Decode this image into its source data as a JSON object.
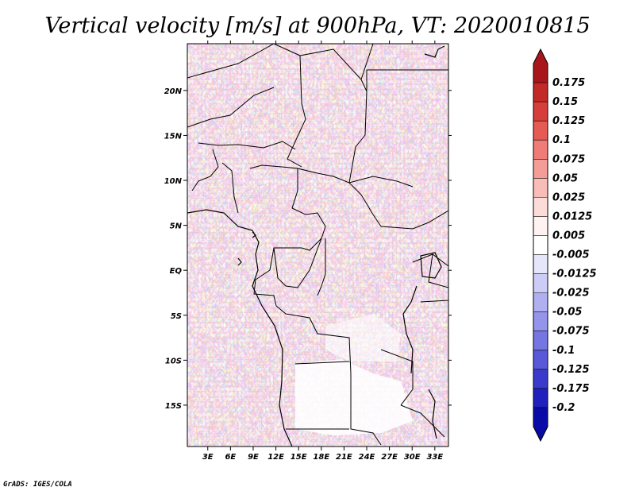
{
  "chart_data": {
    "type": "heatmap",
    "title": "Vertical velocity [m/s] at 900hPa, VT: 2020010815",
    "variable": "Vertical velocity",
    "units": "m/s",
    "level": "900hPa",
    "valid_time": "2020010815",
    "x_ticks": [
      "3E",
      "6E",
      "9E",
      "12E",
      "15E",
      "18E",
      "21E",
      "24E",
      "27E",
      "30E",
      "33E"
    ],
    "x_tick_values": [
      3,
      6,
      9,
      12,
      15,
      18,
      21,
      24,
      27,
      30,
      33
    ],
    "y_ticks": [
      "20N",
      "15N",
      "10N",
      "5N",
      "EQ",
      "5S",
      "10S",
      "15S"
    ],
    "y_tick_values": [
      20,
      15,
      10,
      5,
      0,
      -5,
      -10,
      -15
    ],
    "lon_range": [
      0.3,
      34.8
    ],
    "lat_range": [
      -19.6,
      25.2
    ],
    "colorbar": {
      "labels": [
        "0.175",
        "0.15",
        "0.125",
        "0.1",
        "0.075",
        "0.05",
        "0.025",
        "0.0125",
        "0.005",
        "-0.005",
        "-0.0125",
        "-0.025",
        "-0.05",
        "-0.075",
        "-0.1",
        "-0.125",
        "-0.175",
        "-0.2"
      ],
      "colors": [
        "#a8161c",
        "#c12a29",
        "#d63e3c",
        "#e55a55",
        "#ef7c77",
        "#f49d98",
        "#f9bdb9",
        "#fcdcd9",
        "#fff2f1",
        "#ffffff",
        "#e6e6fb",
        "#ccccf6",
        "#b0b0f0",
        "#9494ea",
        "#7676e2",
        "#5858d8",
        "#3b3bcb",
        "#2020bc",
        "#0a0aa6"
      ],
      "extend": "both"
    }
  },
  "credit": "GrADS: IGES/COLA"
}
